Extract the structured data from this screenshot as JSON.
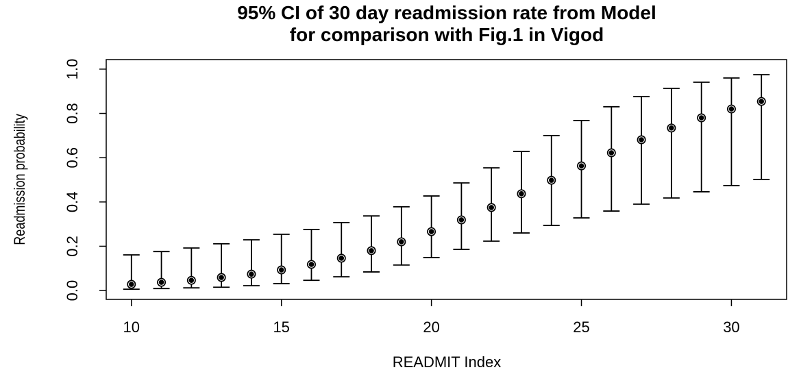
{
  "chart_data": {
    "type": "errorbar",
    "title": [
      "95% CI of 30 day readmission rate from Model",
      "for comparison with Fig.1 in Vigod"
    ],
    "x_label": "READMIT Index",
    "y_label": "Readmission probability",
    "x": [
      10,
      11,
      12,
      13,
      14,
      15,
      16,
      17,
      18,
      19,
      20,
      21,
      22,
      23,
      24,
      25,
      26,
      27,
      28,
      29,
      30,
      31
    ],
    "series": [
      {
        "color": "#000000",
        "values": [
          0.028,
          0.037,
          0.046,
          0.059,
          0.074,
          0.093,
          0.118,
          0.146,
          0.18,
          0.22,
          0.266,
          0.319,
          0.375,
          0.437,
          0.498,
          0.563,
          0.622,
          0.681,
          0.734,
          0.78,
          0.82,
          0.854
        ],
        "lower": [
          0.006,
          0.009,
          0.012,
          0.015,
          0.022,
          0.031,
          0.046,
          0.062,
          0.084,
          0.115,
          0.149,
          0.186,
          0.223,
          0.26,
          0.294,
          0.328,
          0.359,
          0.39,
          0.418,
          0.446,
          0.474,
          0.502
        ],
        "upper": [
          0.161,
          0.176,
          0.192,
          0.211,
          0.229,
          0.254,
          0.276,
          0.307,
          0.337,
          0.378,
          0.427,
          0.486,
          0.554,
          0.628,
          0.7,
          0.768,
          0.83,
          0.876,
          0.913,
          0.941,
          0.96,
          0.975
        ]
      }
    ],
    "xlim": [
      9.16,
      31.84
    ],
    "ylim": [
      -0.04,
      1.043
    ],
    "xticks": [
      10,
      15,
      20,
      25,
      30
    ],
    "yticks": [
      {
        "value": 0,
        "label": "0.0"
      },
      0.2,
      0.4,
      0.6,
      0.8,
      {
        "value": 1,
        "label": "1.0"
      }
    ]
  }
}
